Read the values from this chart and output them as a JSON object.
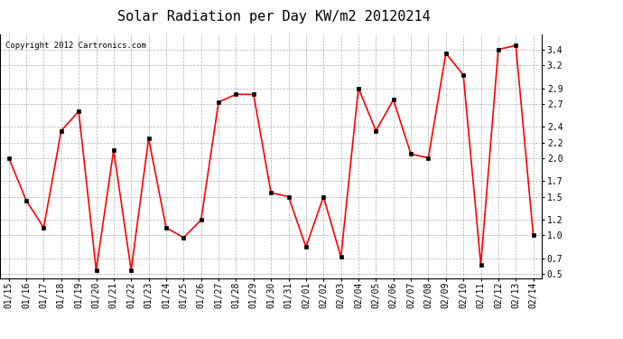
{
  "title": "Solar Radiation per Day KW/m2 20120214",
  "copyright_text": "Copyright 2012 Cartronics.com",
  "x_labels": [
    "01/15",
    "01/16",
    "01/17",
    "01/18",
    "01/19",
    "01/20",
    "01/21",
    "01/22",
    "01/23",
    "01/24",
    "01/25",
    "01/26",
    "01/27",
    "01/28",
    "01/29",
    "01/30",
    "01/31",
    "02/01",
    "02/02",
    "02/03",
    "02/04",
    "02/05",
    "02/06",
    "02/07",
    "02/08",
    "02/09",
    "02/10",
    "02/11",
    "02/12",
    "02/13",
    "02/14"
  ],
  "y_values": [
    2.0,
    1.45,
    1.1,
    2.35,
    2.6,
    0.55,
    2.1,
    0.55,
    2.25,
    1.1,
    0.97,
    1.2,
    2.72,
    2.82,
    2.82,
    1.55,
    1.5,
    0.85,
    1.5,
    0.72,
    2.9,
    2.35,
    2.75,
    2.05,
    2.0,
    3.35,
    3.07,
    0.62,
    3.4,
    3.45,
    1.0
  ],
  "y_ticks": [
    0.5,
    0.7,
    1.0,
    1.2,
    1.5,
    1.7,
    2.0,
    2.2,
    2.4,
    2.7,
    2.9,
    3.2,
    3.4
  ],
  "ylim": [
    0.45,
    3.6
  ],
  "line_color": "#ff0000",
  "marker_color": "#000000",
  "background_color": "#ffffff",
  "grid_color": "#999999",
  "title_fontsize": 11,
  "tick_fontsize": 7,
  "copyright_fontsize": 6.5
}
